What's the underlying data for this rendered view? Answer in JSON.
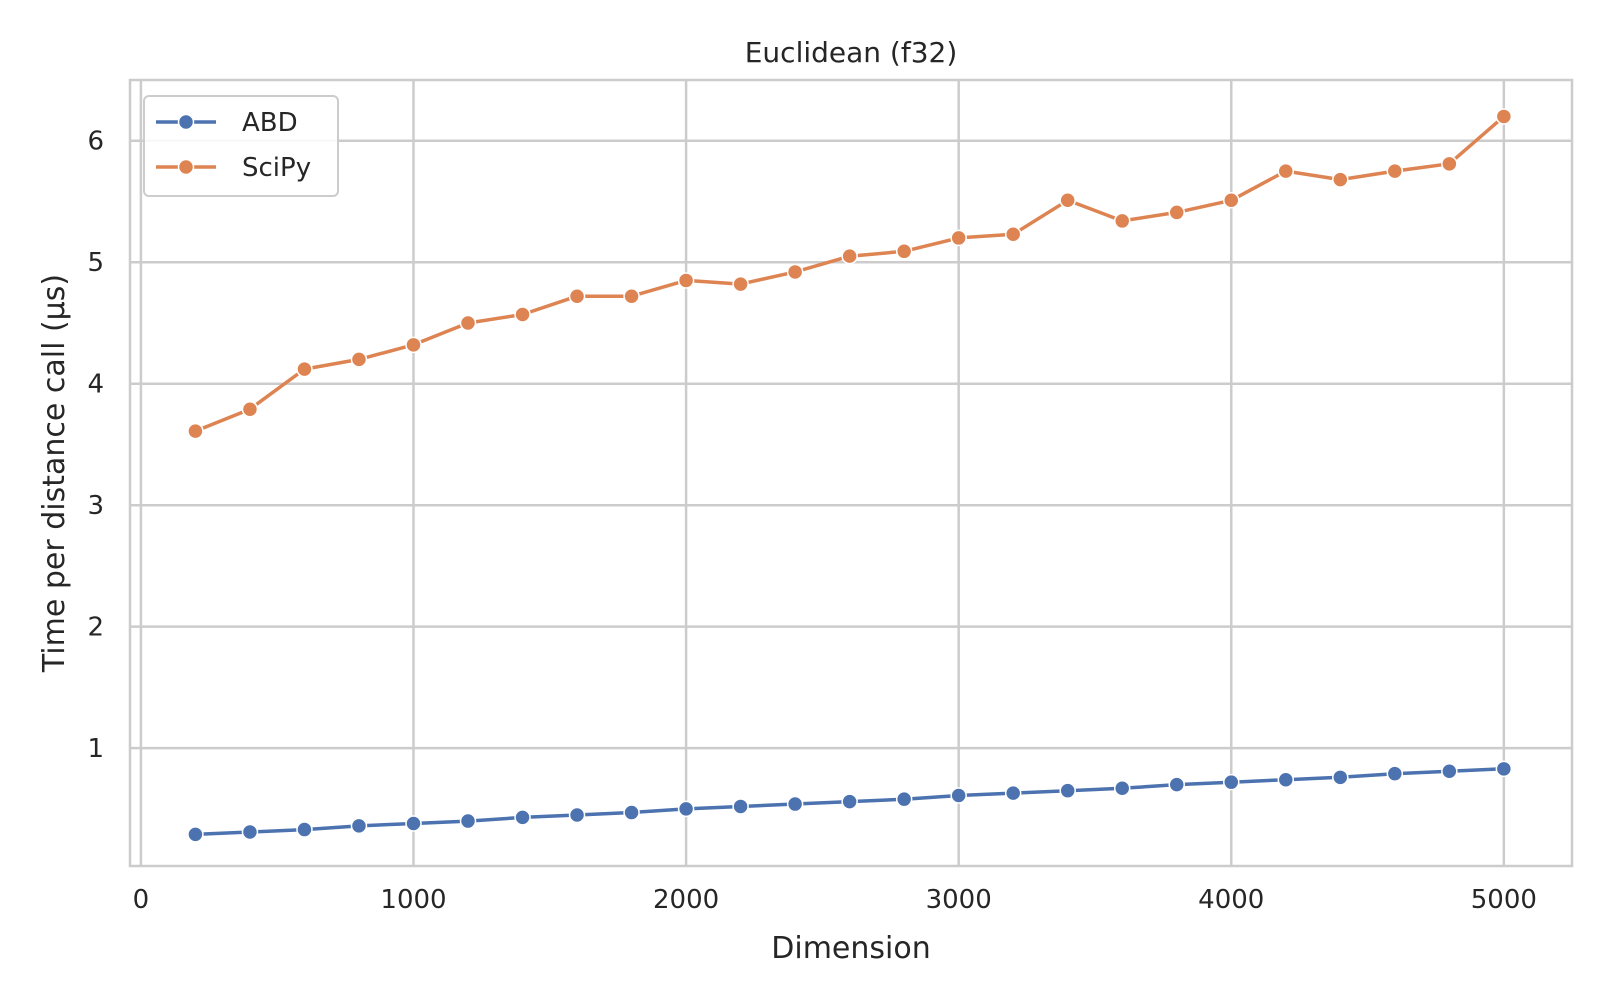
{
  "chart_data": {
    "type": "line",
    "title": "Euclidean (f32)",
    "xlabel": "Dimension",
    "ylabel": "Time per distance call (µs)",
    "xlim": [
      -40,
      5250
    ],
    "ylim": [
      0.03,
      6.5
    ],
    "xticks": [
      0,
      1000,
      2000,
      3000,
      4000,
      5000
    ],
    "yticks": [
      1,
      2,
      3,
      4,
      5,
      6
    ],
    "grid": true,
    "legend_position": "top-left",
    "x": [
      200,
      400,
      600,
      800,
      1000,
      1200,
      1400,
      1600,
      1800,
      2000,
      2200,
      2400,
      2600,
      2800,
      3000,
      3200,
      3400,
      3600,
      3800,
      4000,
      4200,
      4400,
      4600,
      4800,
      5000
    ],
    "series": [
      {
        "name": "ABD",
        "color": "#4c72b0",
        "marker": "circle",
        "values": [
          0.29,
          0.31,
          0.33,
          0.36,
          0.38,
          0.4,
          0.43,
          0.45,
          0.47,
          0.5,
          0.52,
          0.54,
          0.56,
          0.58,
          0.61,
          0.63,
          0.65,
          0.67,
          0.7,
          0.72,
          0.74,
          0.76,
          0.79,
          0.81,
          0.83
        ]
      },
      {
        "name": "SciPy",
        "color": "#dd8452",
        "marker": "circle",
        "values": [
          3.61,
          3.79,
          4.12,
          4.2,
          4.32,
          4.5,
          4.57,
          4.72,
          4.72,
          4.85,
          4.82,
          4.92,
          5.05,
          5.09,
          5.2,
          5.23,
          5.51,
          5.34,
          5.41,
          5.51,
          5.75,
          5.68,
          5.75,
          5.81,
          6.2
        ]
      }
    ]
  }
}
